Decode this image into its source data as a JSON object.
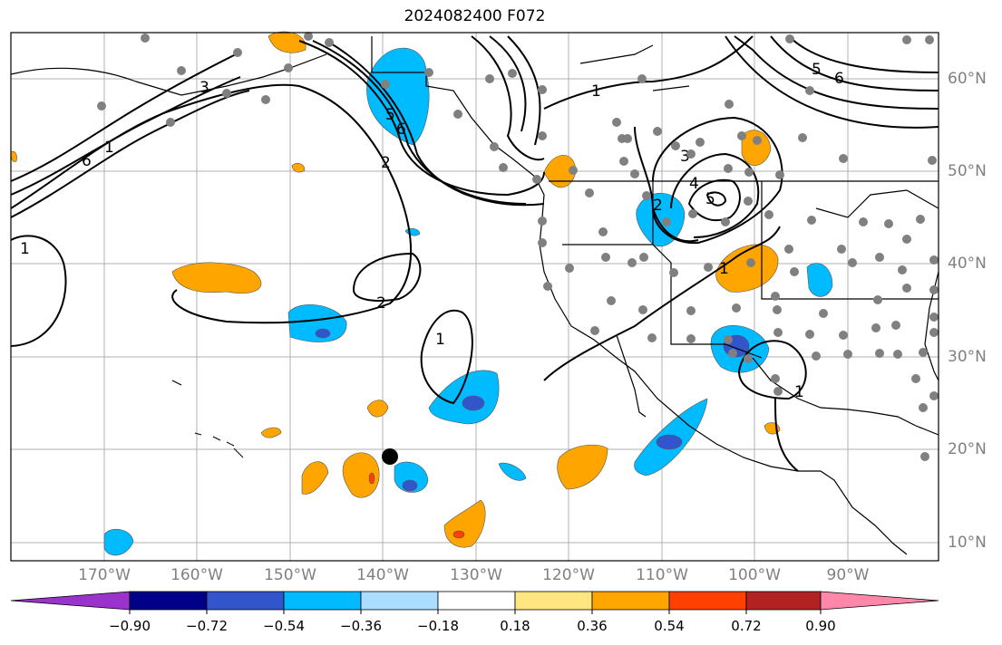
{
  "title": "2024082400 F072",
  "lat_labels": [
    "60°N",
    "50°N",
    "40°N",
    "30°N",
    "20°N",
    "10°N"
  ],
  "lon_labels": [
    "170°W",
    "160°W",
    "150°W",
    "140°W",
    "130°W",
    "120°W",
    "110°W",
    "100°W",
    "90°W"
  ],
  "colorbar": {
    "tick_labels": [
      "−0.90",
      "−0.72",
      "−0.54",
      "−0.36",
      "−0.18",
      "0.18",
      "0.36",
      "0.54",
      "0.72",
      "0.90"
    ],
    "colors": [
      "#9933cc",
      "#000088",
      "#3355cc",
      "#00bbff",
      "#aaddff",
      "#ffffff",
      "#ffe680",
      "#ffa500",
      "#ff4000",
      "#b22222",
      "#ff88aa"
    ]
  },
  "contour_labels": [
    "1",
    "2",
    "3",
    "4",
    "5",
    "6"
  ],
  "colors": {
    "neg_light": "#aaddff",
    "neg_medium": "#00bbff",
    "neg_strong": "#3355cc",
    "pos_light": "#ffe680",
    "pos_medium": "#ffa500",
    "pos_strong": "#ff4000",
    "station": "#808080",
    "marker": "#000000",
    "grid": "#b0b0b0"
  }
}
